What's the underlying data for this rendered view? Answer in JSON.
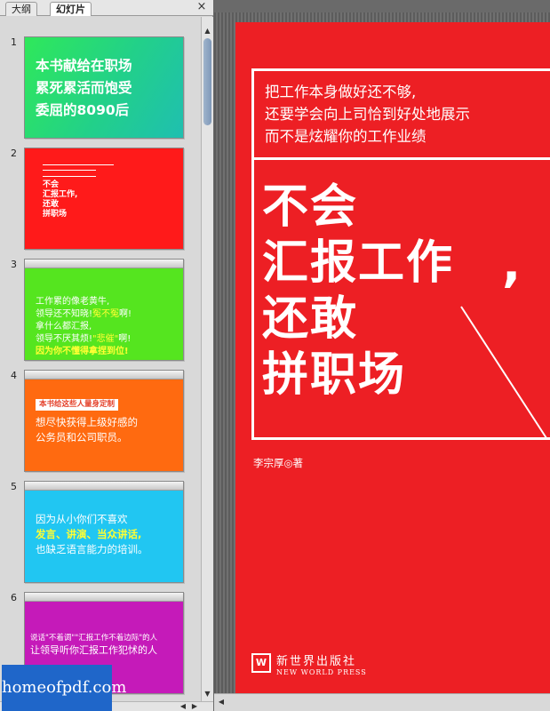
{
  "tabs": {
    "outline": "大纲",
    "slides": "幻灯片",
    "close": "×"
  },
  "scroll": {
    "up": "▲",
    "down": "▼",
    "left": "◀",
    "right": "▶"
  },
  "slides": [
    {
      "num": "1",
      "text": "本书献给在职场\n累死累活而饱受\n委屈的8090后"
    },
    {
      "num": "2",
      "text": "不会\n汇报工作,\n还敢\n拼职场"
    },
    {
      "num": "3",
      "text_a": "工作累的像老黄牛,\n领导还不知晓!",
      "text_b": "冤不冤",
      "text_c": "啊!\n拿什么都汇报,\n领导不厌其烦!",
      "text_d": "\"悲催\"",
      "text_e": "啊!",
      "text_f": "因为你不懂得拿捏到位!"
    },
    {
      "num": "4",
      "tag": "本书给这些人量身定制",
      "text": "想尽快获得上级好感的\n公务员和公司职员。"
    },
    {
      "num": "5",
      "text_a": "因为从小你们不喜欢",
      "text_b": "发言、讲演、当众讲话,",
      "text_c": "也缺乏语言能力的培训。"
    },
    {
      "num": "6",
      "text_a": "说话\"不着调\"\"汇报工作不着边际\"的人",
      "text_b": "让领导听你汇报工作犯怵的人"
    }
  ],
  "cover": {
    "tagline": "把工作本身做好还不够,\n还要学会向上司恰到好处地展示\n而不是炫耀你的工作业绩",
    "title": "不会\n汇报工作\n还敢\n拼职场",
    "comma": ",",
    "author": "李宗厚◎著",
    "publisher_cn": "新世界出版社",
    "publisher_en": "NEW WORLD PRESS",
    "publisher_logo": "W"
  },
  "watermark": "homeofpdf.com",
  "colors": {
    "slide1": "#2dd66b",
    "slide2": "#ff1a1a",
    "slide3": "#55e51f",
    "slide4": "#ff6a10",
    "slide5": "#21c6f2",
    "slide6": "#c51ab9",
    "cover": "#ed1f24"
  }
}
